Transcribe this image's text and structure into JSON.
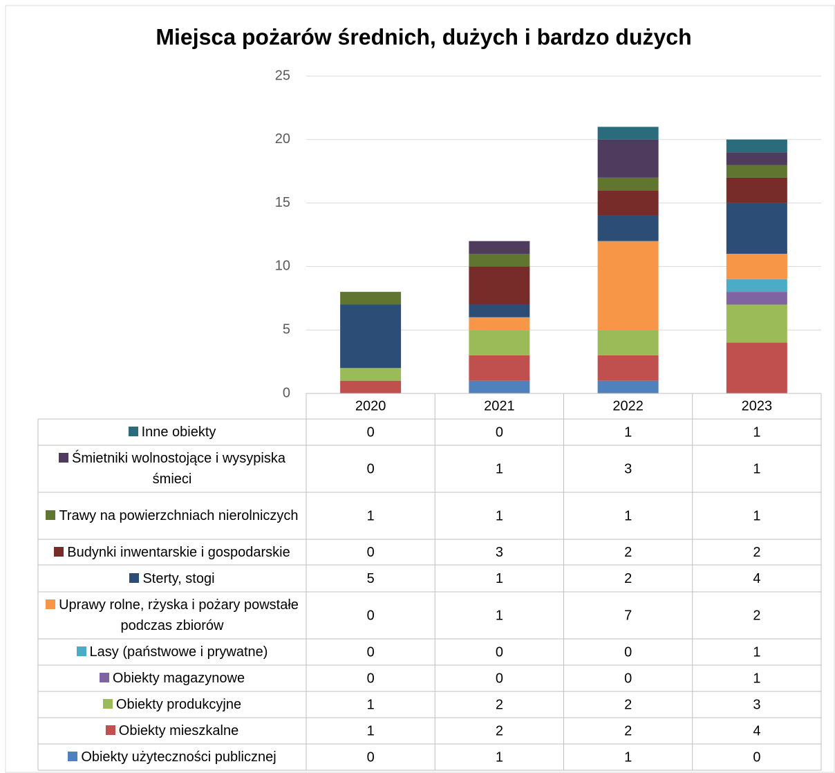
{
  "chart_data": {
    "type": "stacked_bar",
    "title": "Miejsca pożarów średnich, dużych i bardzo dużych",
    "categories": [
      "2020",
      "2021",
      "2022",
      "2023"
    ],
    "ylim": [
      0,
      25
    ],
    "yticks": [
      0,
      5,
      10,
      15,
      20,
      25
    ],
    "grid": true,
    "series": [
      {
        "name": "Inne obiekty",
        "color": "#2a6b7c",
        "values": [
          0,
          0,
          1,
          1
        ]
      },
      {
        "name": "Śmietniki wolnostojące i wysypiska śmieci",
        "color": "#4e3b5e",
        "values": [
          0,
          1,
          3,
          1
        ]
      },
      {
        "name": "Trawy na powierzchniach nierolniczych",
        "color": "#5f7530",
        "values": [
          1,
          1,
          1,
          1
        ]
      },
      {
        "name": "Budynki inwentarskie i gospodarskie",
        "color": "#772c2a",
        "values": [
          0,
          3,
          2,
          2
        ]
      },
      {
        "name": "Sterty, stogi",
        "color": "#2c4d75",
        "values": [
          5,
          1,
          2,
          4
        ]
      },
      {
        "name": "Uprawy rolne, rżyska i pożary powstałe podczas zbiorów",
        "color": "#f79646",
        "values": [
          0,
          1,
          7,
          2
        ]
      },
      {
        "name": "Lasy (państwowe i prywatne)",
        "color": "#4bacc6",
        "values": [
          0,
          0,
          0,
          1
        ]
      },
      {
        "name": "Obiekty magazynowe",
        "color": "#8064a2",
        "values": [
          0,
          0,
          0,
          1
        ]
      },
      {
        "name": "Obiekty produkcyjne",
        "color": "#9bbb59",
        "values": [
          1,
          2,
          2,
          3
        ]
      },
      {
        "name": "Obiekty mieszkalne",
        "color": "#c0504d",
        "values": [
          1,
          2,
          2,
          4
        ]
      },
      {
        "name": "Obiekty użyteczności publicznej",
        "color": "#4f81bd",
        "values": [
          0,
          1,
          1,
          0
        ]
      }
    ]
  }
}
